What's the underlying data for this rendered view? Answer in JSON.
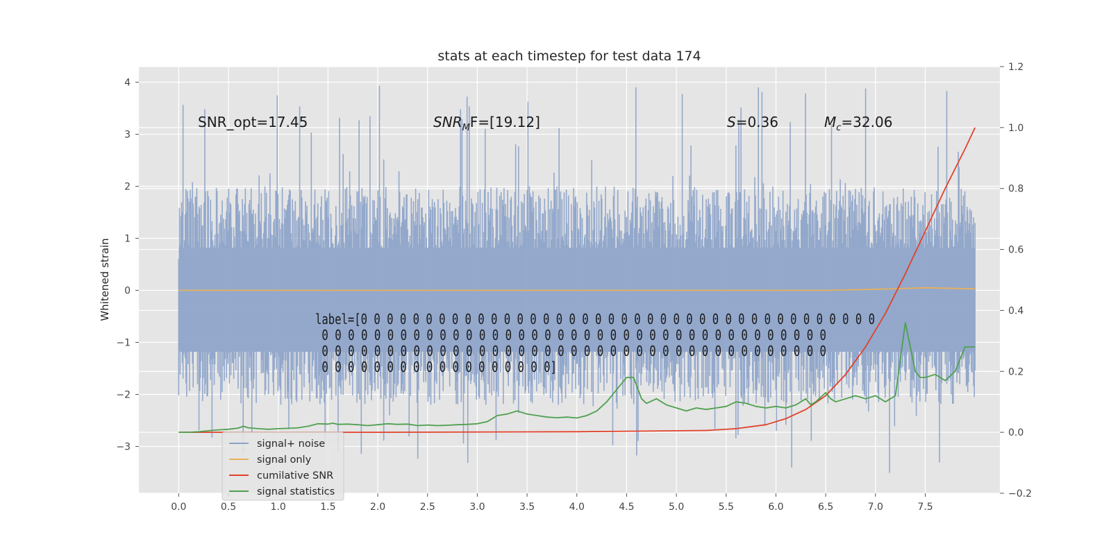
{
  "chart_data": {
    "type": "line",
    "title": "stats at each timestep for test data 174",
    "ylabel": "Whitened strain",
    "xlabel": "",
    "xlim": [
      -0.4,
      8.25
    ],
    "ylim": [
      -3.9,
      4.3
    ],
    "y2lim": [
      -0.2,
      1.2
    ],
    "x_ticks": [
      0.0,
      0.5,
      1.0,
      1.5,
      2.0,
      2.5,
      3.0,
      3.5,
      4.0,
      4.5,
      5.0,
      5.5,
      6.0,
      6.5,
      7.0,
      7.5
    ],
    "x_tick_labels": [
      "0.0",
      "0.5",
      "1.0",
      "1.5",
      "2.0",
      "2.5",
      "3.0",
      "3.5",
      "4.0",
      "4.5",
      "5.0",
      "5.5",
      "6.0",
      "6.5",
      "7.0",
      "7.5"
    ],
    "y_ticks": [
      4,
      3,
      2,
      1,
      0,
      -1,
      -2,
      -3
    ],
    "y_tick_labels": [
      "4",
      "3",
      "2",
      "1",
      "0",
      "−1",
      "−2",
      "−3"
    ],
    "y2_ticks": [
      1.2,
      1.0,
      0.8,
      0.6,
      0.4,
      0.2,
      0.0,
      -0.2
    ],
    "y2_tick_labels": [
      "1.2",
      "1.0",
      "0.8",
      "0.6",
      "0.4",
      "0.2",
      "0.0",
      "−0.2"
    ],
    "grid": true,
    "legend_position": "lower-left",
    "series": [
      {
        "name": "signal+ noise",
        "color": "#8da3c9",
        "axis": "left",
        "noise_envelope": {
          "x_start": 0.0,
          "x_end": 8.0,
          "typical_max": 2.0,
          "peak_max": 4.0,
          "typical_min": -2.2,
          "peak_min": -3.55
        }
      },
      {
        "name": "signal only",
        "color": "#e8b15a",
        "axis": "left",
        "x": [
          0.0,
          6.5,
          7.0,
          7.5,
          8.0
        ],
        "y": [
          0.0,
          0.0,
          0.02,
          0.05,
          0.03
        ]
      },
      {
        "name": "cumilative SNR",
        "color": "#e2412b",
        "axis": "right",
        "x": [
          0.0,
          2.0,
          4.0,
          5.3,
          5.6,
          5.9,
          6.1,
          6.3,
          6.5,
          6.7,
          6.9,
          7.1,
          7.3,
          7.5,
          7.7,
          7.9,
          8.0
        ],
        "y": [
          0.0,
          0.0,
          0.002,
          0.006,
          0.012,
          0.025,
          0.045,
          0.075,
          0.12,
          0.19,
          0.28,
          0.39,
          0.52,
          0.66,
          0.8,
          0.93,
          1.0
        ]
      },
      {
        "name": "signal statistics",
        "color": "#4ea04e",
        "axis": "right",
        "x": [
          0.0,
          0.1,
          0.2,
          0.3,
          0.4,
          0.5,
          0.6,
          0.65,
          0.7,
          0.8,
          0.9,
          1.0,
          1.1,
          1.2,
          1.3,
          1.4,
          1.5,
          1.55,
          1.6,
          1.7,
          1.8,
          1.9,
          2.0,
          2.1,
          2.2,
          2.3,
          2.4,
          2.5,
          2.6,
          2.7,
          2.8,
          2.9,
          3.0,
          3.1,
          3.2,
          3.3,
          3.4,
          3.5,
          3.6,
          3.7,
          3.8,
          3.9,
          4.0,
          4.1,
          4.2,
          4.3,
          4.4,
          4.5,
          4.57,
          4.65,
          4.7,
          4.8,
          4.9,
          5.0,
          5.1,
          5.2,
          5.3,
          5.4,
          5.5,
          5.6,
          5.7,
          5.8,
          5.9,
          6.0,
          6.1,
          6.2,
          6.3,
          6.35,
          6.4,
          6.5,
          6.55,
          6.6,
          6.7,
          6.8,
          6.9,
          7.0,
          7.1,
          7.2,
          7.3,
          7.4,
          7.45,
          7.5,
          7.6,
          7.7,
          7.8,
          7.9,
          8.0
        ],
        "y": [
          0.0,
          0.0,
          0.002,
          0.005,
          0.008,
          0.01,
          0.014,
          0.02,
          0.015,
          0.012,
          0.01,
          0.012,
          0.013,
          0.015,
          0.02,
          0.028,
          0.027,
          0.03,
          0.026,
          0.027,
          0.025,
          0.022,
          0.025,
          0.028,
          0.026,
          0.027,
          0.022,
          0.024,
          0.022,
          0.023,
          0.025,
          0.026,
          0.028,
          0.035,
          0.055,
          0.06,
          0.07,
          0.06,
          0.055,
          0.05,
          0.048,
          0.05,
          0.047,
          0.055,
          0.07,
          0.1,
          0.14,
          0.18,
          0.18,
          0.11,
          0.095,
          0.11,
          0.09,
          0.08,
          0.07,
          0.08,
          0.075,
          0.08,
          0.085,
          0.1,
          0.095,
          0.085,
          0.08,
          0.085,
          0.08,
          0.09,
          0.11,
          0.09,
          0.1,
          0.13,
          0.11,
          0.1,
          0.11,
          0.12,
          0.11,
          0.12,
          0.1,
          0.12,
          0.36,
          0.2,
          0.18,
          0.18,
          0.19,
          0.17,
          0.2,
          0.28,
          0.28
        ]
      }
    ],
    "annotations": [
      {
        "text": "SNR_opt=17.45"
      },
      {
        "text_main": "SNR",
        "text_sub": "M",
        "text_rest": "F=[19.12]"
      },
      {
        "text_main": "S",
        "text_rest": "=0.36"
      },
      {
        "text_main": "M",
        "text_sub": "c",
        "text_rest": "=32.06"
      }
    ],
    "label_text": [
      "label=[0 0 0 0 0 0 0 0 0 0 0 0 0 0 0 0 0 0 0 0 0 0 0 0 0 0 0 0 0 0 0 0 0 0 0 0 0 0 0 0",
      " 0 0 0 0 0 0 0 0 0 0 0 0 0 0 0 0 0 0 0 0 0 0 0 0 0 0 0 0 0 0 0 0 0 0 0 0 0 0 0",
      " 0 0 0 0 0 0 0 0 0 0 0 0 0 0 0 0 0 0 0 0 0 0 0 0 0 0 0 0 0 0 0 0 0 0 0 0 0 0 0",
      " 0 0 0 0 0 0 0 0 0 0 0 0 0 0 0 0 0 0]"
    ]
  }
}
